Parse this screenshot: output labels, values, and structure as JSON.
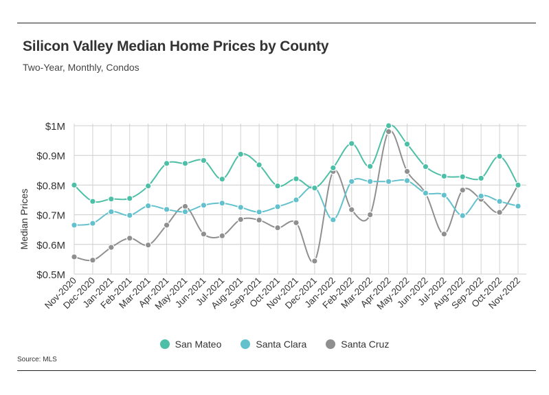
{
  "title": "Silicon Valley Median Home Prices by County",
  "subtitle": "Two-Year, Monthly, Condos",
  "source": "Source: MLS",
  "chart_data": {
    "type": "line",
    "ylabel": "Median Prices",
    "ylim": [
      0.5,
      1.0
    ],
    "yticks": [
      {
        "value": 1.0,
        "label": "$1M"
      },
      {
        "value": 0.9,
        "label": "$0.9M"
      },
      {
        "value": 0.8,
        "label": "$0.8M"
      },
      {
        "value": 0.7,
        "label": "$0.7M"
      },
      {
        "value": 0.6,
        "label": "$0.6M"
      },
      {
        "value": 0.5,
        "label": "$0.5M"
      }
    ],
    "categories": [
      "Nov-2020",
      "Dec-2020",
      "Jan-2021",
      "Feb-2021",
      "Mar-2021",
      "Apr-2021",
      "May-2021",
      "Jun-2021",
      "Jul-2021",
      "Aug-2021",
      "Sep-2021",
      "Oct-2021",
      "Nov-2021",
      "Dec-2021",
      "Jan-2022",
      "Feb-2022",
      "Mar-2022",
      "Apr-2022",
      "May-2022",
      "Jun-2022",
      "Jul-2022",
      "Aug-2022",
      "Sep-2022",
      "Oct-2022",
      "Nov-2022"
    ],
    "grid": true,
    "legend_position": "bottom",
    "series": [
      {
        "name": "San Mateo",
        "color": "#4dbfa6",
        "values": [
          0.8,
          0.745,
          0.753,
          0.755,
          0.797,
          0.873,
          0.873,
          0.883,
          0.82,
          0.904,
          0.868,
          0.797,
          0.821,
          0.79,
          0.858,
          0.94,
          0.863,
          1.0,
          0.938,
          0.862,
          0.83,
          0.828,
          0.823,
          0.897,
          0.8
        ]
      },
      {
        "name": "Santa Clara",
        "color": "#62c1cc",
        "values": [
          0.665,
          0.671,
          0.71,
          0.698,
          0.73,
          0.718,
          0.71,
          0.732,
          0.739,
          0.725,
          0.709,
          0.727,
          0.75,
          0.793,
          0.683,
          0.812,
          0.812,
          0.812,
          0.815,
          0.773,
          0.766,
          0.697,
          0.763,
          0.745,
          0.729
        ]
      },
      {
        "name": "Santa Cruz",
        "color": "#8f8f8f",
        "values": [
          0.558,
          0.547,
          0.59,
          0.621,
          0.598,
          0.665,
          0.728,
          0.635,
          0.629,
          0.684,
          0.682,
          0.656,
          0.673,
          0.544,
          0.846,
          0.717,
          0.7,
          0.98,
          0.846,
          0.772,
          0.635,
          0.783,
          0.752,
          0.708,
          0.8
        ]
      }
    ]
  }
}
